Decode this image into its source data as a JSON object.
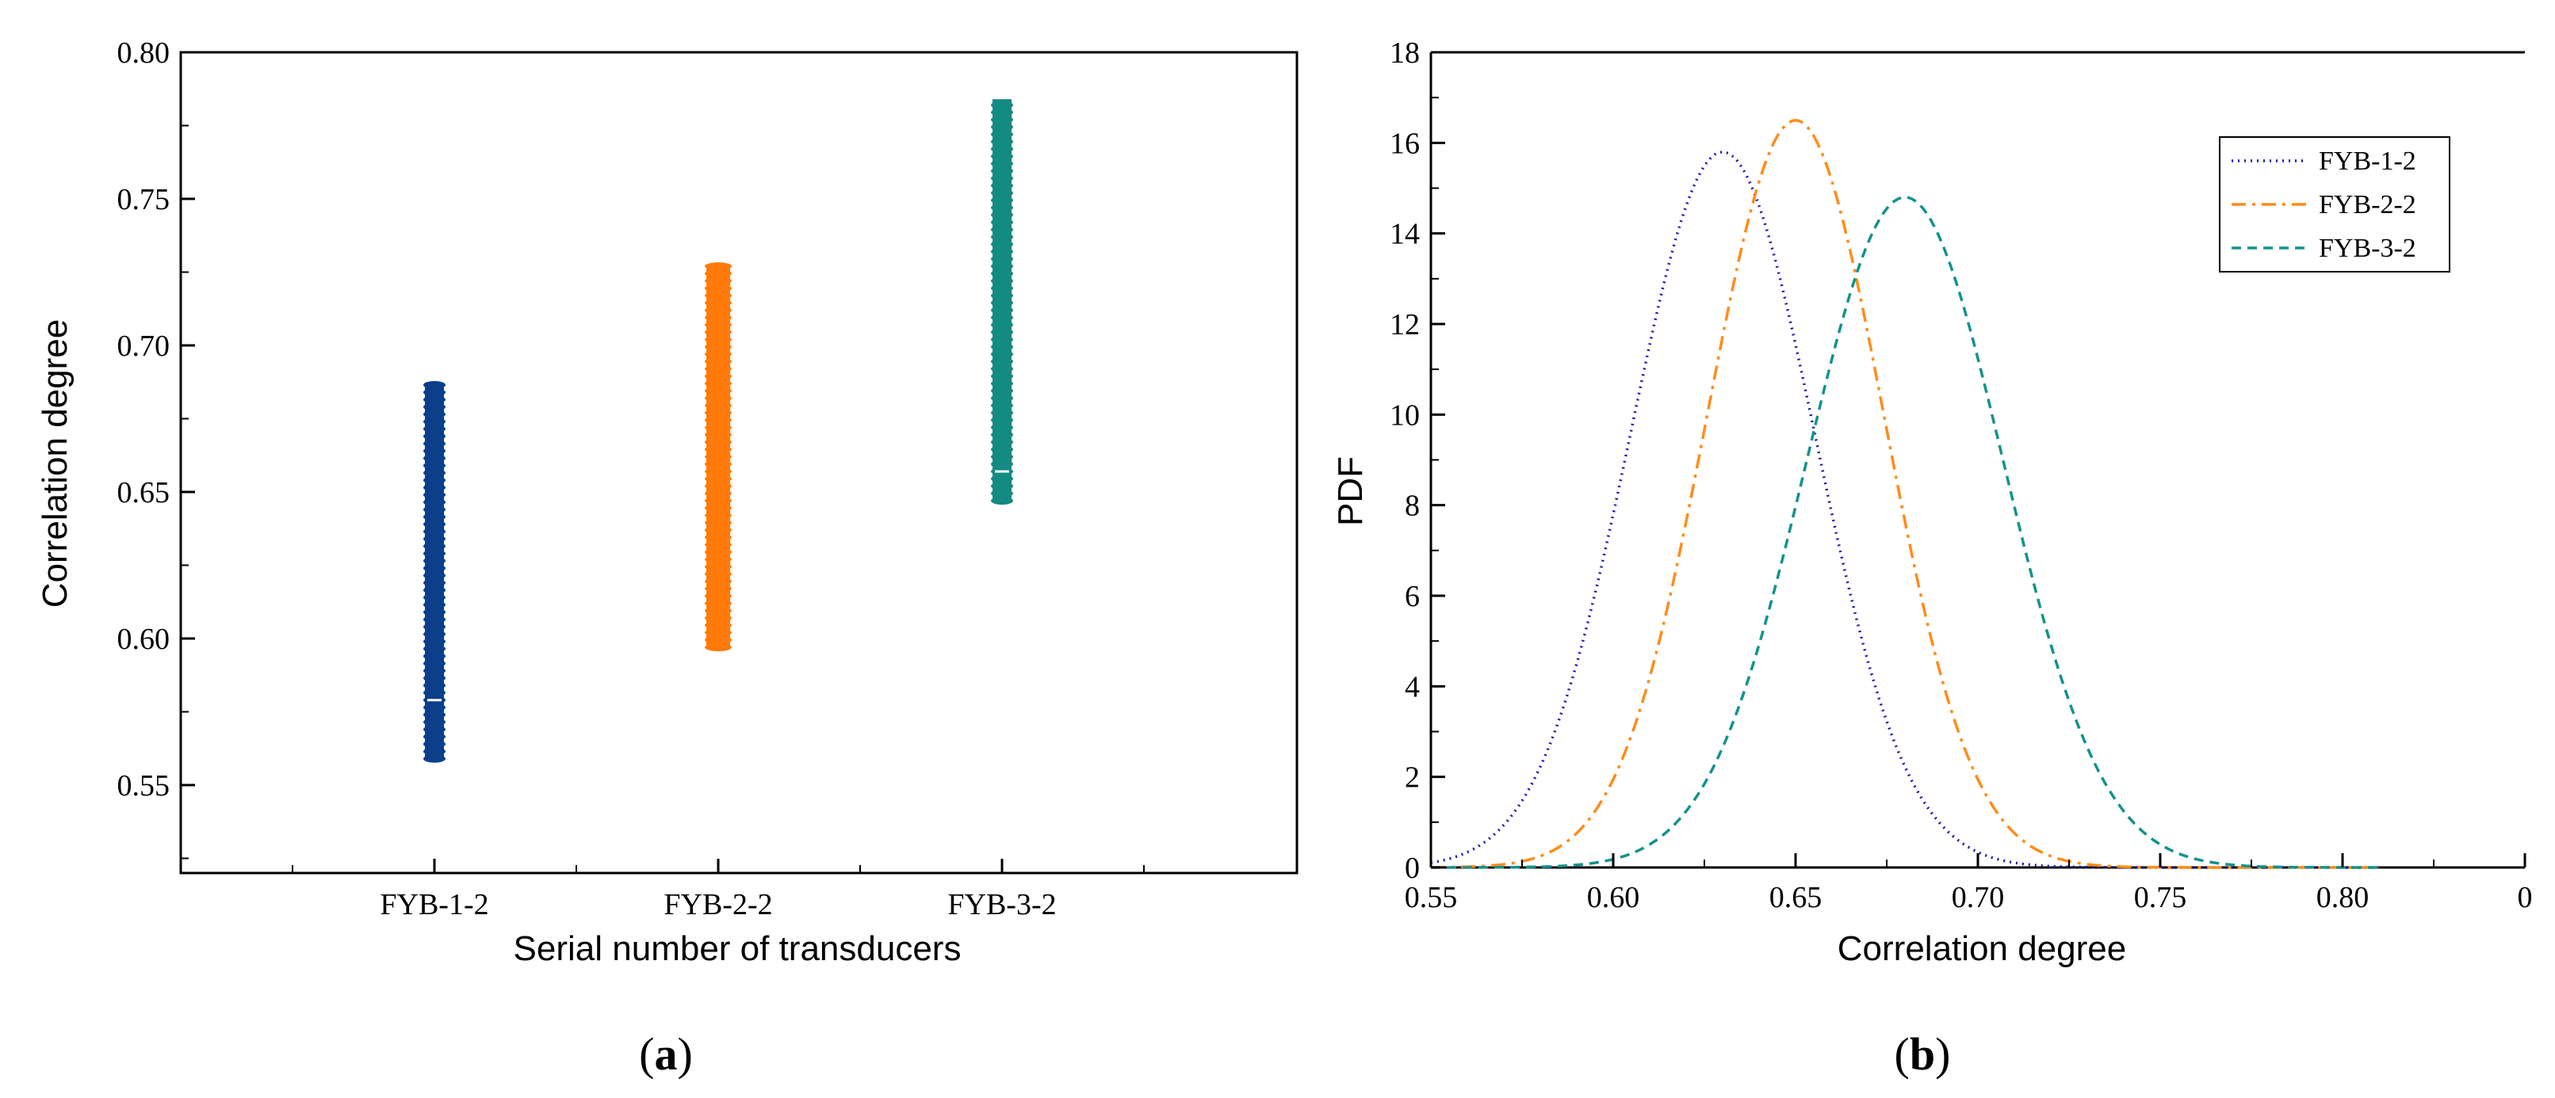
{
  "chart_data": [
    {
      "type": "scatter",
      "caption": {
        "open": "(",
        "letter": "a",
        "close": ")"
      },
      "xlabel": "Serial number of transducers",
      "ylabel": "Correlation degree",
      "ylim": [
        0.52,
        0.8
      ],
      "yticks": [
        "0.55",
        "0.60",
        "0.65",
        "0.70",
        "0.75",
        "0.80"
      ],
      "categories": [
        "FYB-1-2",
        "FYB-2-2",
        "FYB-3-2"
      ],
      "series": [
        {
          "name": "FYB-1-2",
          "color": "#0b3f8a",
          "min": 0.559,
          "max": 0.687,
          "gap": 0.579
        },
        {
          "name": "FYB-2-2",
          "color": "#ff7a0a",
          "min": 0.597,
          "max": 0.727,
          "gap": null
        },
        {
          "name": "FYB-3-2",
          "color": "#138a84",
          "min": 0.647,
          "max": 0.784,
          "gap": 0.657
        }
      ]
    },
    {
      "type": "line",
      "caption": {
        "open": "(",
        "letter": "b",
        "close": ")"
      },
      "xlabel": "Correlation degree",
      "ylabel": "PDF",
      "xlim": [
        0.55,
        0.85
      ],
      "ylim": [
        0,
        18
      ],
      "xticks": [
        "0.55",
        "0.60",
        "0.65",
        "0.70",
        "0.75",
        "0.80",
        "0"
      ],
      "yticks": [
        "0",
        "2",
        "4",
        "6",
        "8",
        "10",
        "12",
        "14",
        "16",
        "18"
      ],
      "legend_position": "top-right",
      "series": [
        {
          "name": "FYB-1-2",
          "color": "#1a1aa6",
          "style": "dotted",
          "mean": 0.63,
          "peak": 15.8,
          "xmin": 0.55,
          "xmax": 0.81
        },
        {
          "name": "FYB-2-2",
          "color": "#ff8c1a",
          "style": "dash-dot",
          "mean": 0.65,
          "peak": 16.5,
          "xmin": 0.55,
          "xmax": 0.81
        },
        {
          "name": "FYB-3-2",
          "color": "#14928c",
          "style": "dashed",
          "mean": 0.68,
          "peak": 14.8,
          "xmin": 0.55,
          "xmax": 0.81
        }
      ]
    }
  ]
}
